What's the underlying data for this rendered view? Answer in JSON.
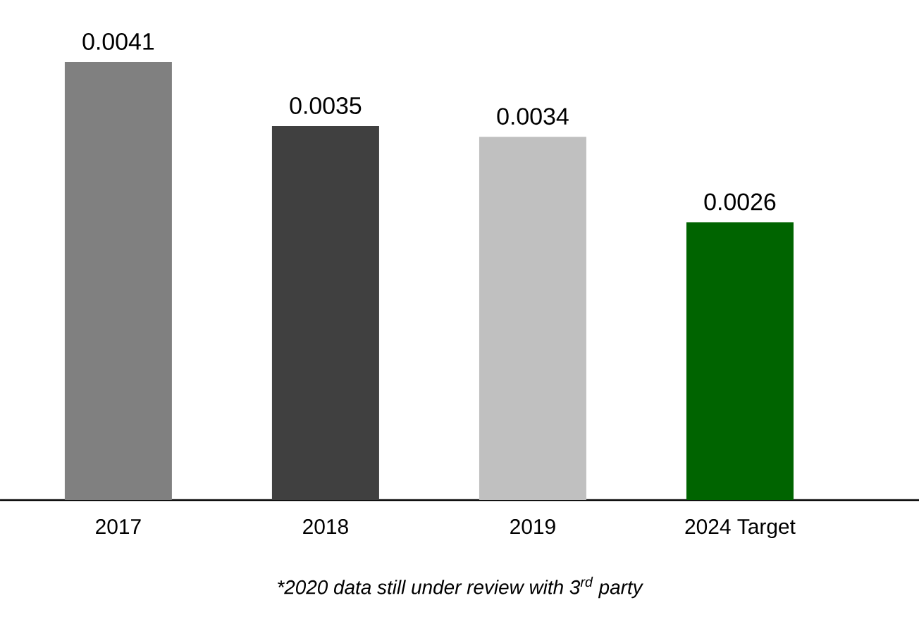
{
  "chart_data": {
    "type": "bar",
    "categories": [
      "2017",
      "2018",
      "2019",
      "2024 Target"
    ],
    "values": [
      0.0041,
      0.0035,
      0.0034,
      0.0026
    ],
    "colors": [
      "#808080",
      "#404040",
      "#c0c0c0",
      "#006400"
    ],
    "data_labels": true,
    "annotations": [
      "*2020 data still under review with 3$^{rd}$ party"
    ]
  }
}
